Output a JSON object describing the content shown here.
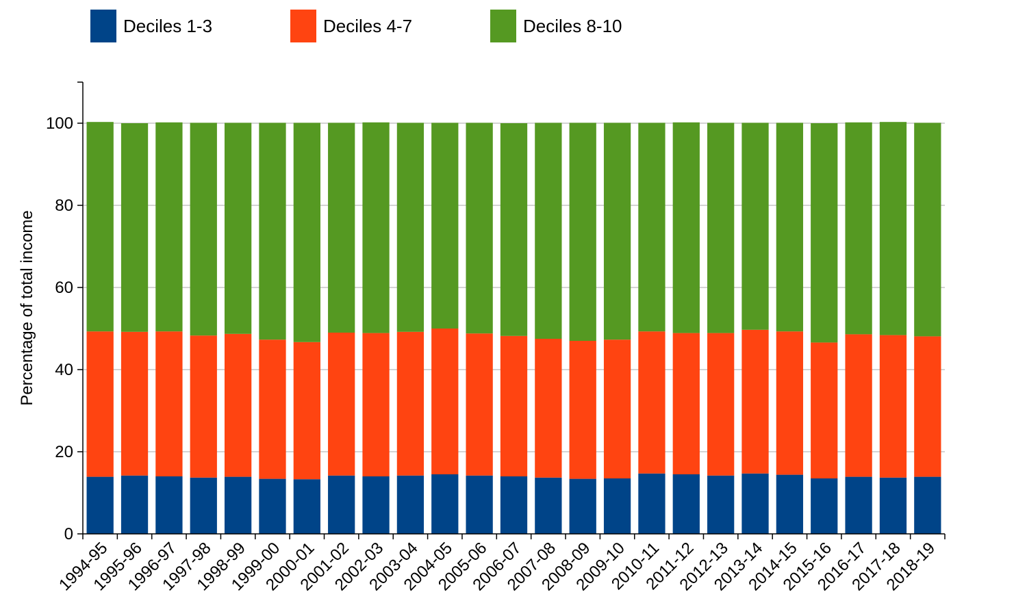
{
  "chart_data": {
    "type": "bar",
    "stacked": true,
    "title": "",
    "xlabel": "",
    "ylabel": "Percentage of total income",
    "ylim": [
      0,
      110
    ],
    "yticks": [
      0,
      20,
      40,
      60,
      80,
      100
    ],
    "grid": true,
    "legend_position": "top-left",
    "categories": [
      "1994-95",
      "1995-96",
      "1996-97",
      "1997-98",
      "1998-99",
      "1999-00",
      "2000-01",
      "2001-02",
      "2002-03",
      "2003-04",
      "2004-05",
      "2005-06",
      "2006-07",
      "2007-08",
      "2008-09",
      "2009-10",
      "2010-11",
      "2011-12",
      "2012-13",
      "2013-14",
      "2014-15",
      "2015-16",
      "2016-17",
      "2017-18",
      "2018-19"
    ],
    "series": [
      {
        "name": "Deciles 1-3",
        "color": "#004488",
        "values": [
          13.9,
          14.2,
          14.0,
          13.7,
          13.9,
          13.4,
          13.3,
          14.2,
          14.0,
          14.2,
          14.5,
          14.2,
          14.0,
          13.7,
          13.4,
          13.5,
          14.7,
          14.5,
          14.2,
          14.7,
          14.4,
          13.5,
          13.9,
          13.7,
          13.9
        ]
      },
      {
        "name": "Deciles 4-7",
        "color": "#FF4411",
        "values": [
          35.4,
          35.0,
          35.3,
          34.6,
          34.8,
          33.9,
          33.4,
          34.8,
          34.9,
          35.0,
          35.5,
          34.6,
          34.2,
          33.8,
          33.6,
          33.8,
          34.6,
          34.4,
          34.7,
          35.0,
          34.9,
          33.1,
          34.7,
          34.7,
          34.2
        ]
      },
      {
        "name": "Deciles 8-10",
        "color": "#559922",
        "values": [
          51.0,
          50.8,
          50.9,
          51.8,
          51.4,
          52.8,
          53.4,
          51.1,
          51.3,
          50.9,
          50.1,
          51.3,
          51.8,
          52.6,
          53.1,
          52.8,
          50.8,
          51.3,
          51.2,
          50.4,
          50.8,
          53.4,
          51.6,
          51.9,
          52.0
        ]
      }
    ]
  }
}
